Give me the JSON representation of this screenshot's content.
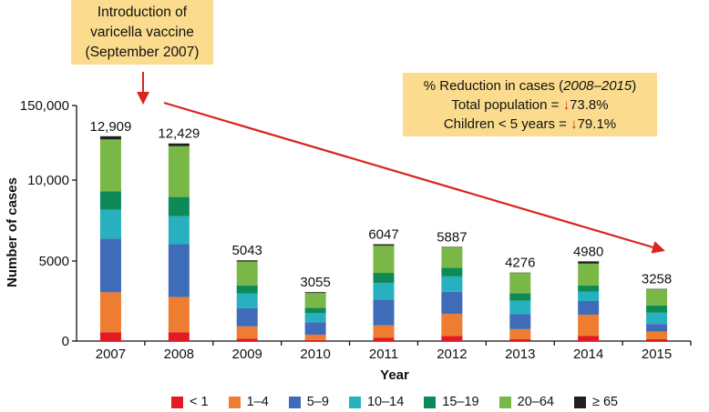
{
  "chart_data": {
    "type": "bar",
    "stacked": true,
    "title": "",
    "xlabel": "Year",
    "ylabel": "Number of cases",
    "categories": [
      "2007",
      "2008",
      "2009",
      "2010",
      "2011",
      "2012",
      "2013",
      "2014",
      "2015"
    ],
    "totals": [
      12909,
      12429,
      5043,
      3055,
      6047,
      5887,
      4276,
      4980,
      3258
    ],
    "total_labels": [
      "12,909",
      "12,429",
      "5043",
      "3055",
      "6047",
      "5887",
      "4276",
      "4980",
      "3258"
    ],
    "yticks": [
      {
        "value": 0,
        "label": "0"
      },
      {
        "value": 5000,
        "label": "5000"
      },
      {
        "value": 10000,
        "label": "10,000"
      },
      {
        "value": 150000,
        "label": "150,000"
      }
    ],
    "y_axis_note": "broken axis: segment from 10,000 upward is compressed (top tick labelled 150,000)",
    "series": [
      {
        "name": "< 1",
        "color": "#e21a23",
        "values": [
          550,
          550,
          140,
          70,
          200,
          320,
          120,
          330,
          120
        ]
      },
      {
        "name": "1–4",
        "color": "#ee7d31",
        "values": [
          2500,
          2200,
          780,
          330,
          780,
          1380,
          630,
          1320,
          470
        ]
      },
      {
        "name": "5–9",
        "color": "#3f6cb8",
        "values": [
          3350,
          3300,
          1130,
          770,
          1620,
          1380,
          930,
          850,
          480
        ]
      },
      {
        "name": "10–14",
        "color": "#27b1c0",
        "values": [
          1800,
          1750,
          930,
          570,
          1040,
          960,
          840,
          580,
          700
        ]
      },
      {
        "name": "15–19",
        "color": "#0d8a57",
        "values": [
          1150,
          1200,
          500,
          330,
          620,
          530,
          460,
          390,
          450
        ]
      },
      {
        "name": "20–64",
        "color": "#79b846",
        "values": [
          3350,
          3250,
          1490,
          930,
          1700,
          1290,
          1270,
          1370,
          1010
        ]
      },
      {
        "name": "≥ 65",
        "color": "#231f20",
        "values": [
          209,
          179,
          73,
          55,
          87,
          27,
          26,
          140,
          28
        ]
      }
    ]
  },
  "annotations": {
    "vaccine": {
      "line1": "Introduction of",
      "line2": "varicella vaccine",
      "line3": "(September 2007)"
    },
    "reduction": {
      "title_prefix": "% Reduction in cases (",
      "title_years": "2008–2015",
      "title_suffix": ")",
      "total_label": "Total population = ",
      "total_value": "73.8%",
      "children_label": "Children < 5 years = ",
      "children_value": "79.1%",
      "down_arrow": "🡇"
    },
    "arrow_color": "#d9251c",
    "note_color": "#fbdc8e"
  }
}
